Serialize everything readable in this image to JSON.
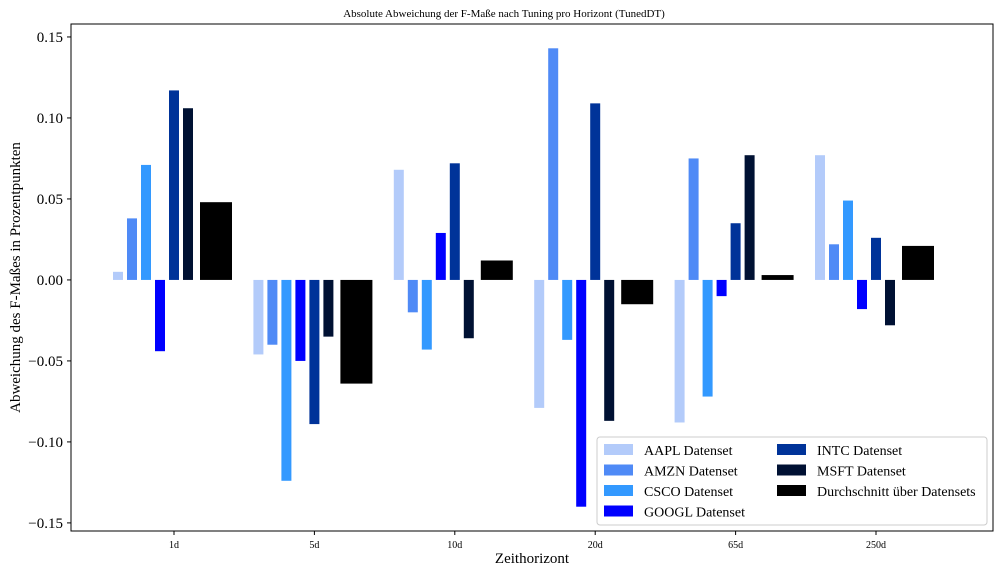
{
  "chart_data": {
    "type": "bar",
    "title": "Absolute Abweichung der F-Maße nach Tuning pro Horizont (TunedDT)",
    "xlabel": "Zeithorizont",
    "ylabel": "Abweichung des F-Maßes in Prozentpunkten",
    "categories": [
      "1d",
      "5d",
      "10d",
      "20d",
      "65d",
      "250d"
    ],
    "ylim": [
      -0.155,
      0.158
    ],
    "yticks": [
      "0.15",
      "0.10",
      "0.05",
      "0.00",
      "−0.05",
      "−0.10",
      "−0.15"
    ],
    "ytick_values": [
      0.15,
      0.1,
      0.05,
      0.0,
      -0.05,
      -0.1,
      -0.15
    ],
    "grid": false,
    "legend_position": "bottom-right",
    "series": [
      {
        "name": "AAPL Datenset",
        "color": "#b3cbfa",
        "values": [
          0.005,
          -0.046,
          0.068,
          -0.079,
          -0.088,
          0.077
        ]
      },
      {
        "name": "AMZN Datenset",
        "color": "#4f8af6",
        "values": [
          0.038,
          -0.04,
          -0.02,
          0.143,
          0.075,
          0.022
        ]
      },
      {
        "name": "CSCO Datenset",
        "color": "#3399ff",
        "values": [
          0.071,
          -0.124,
          -0.043,
          -0.037,
          -0.072,
          0.049
        ]
      },
      {
        "name": "GOOGL Datenset",
        "color": "#0000ff",
        "values": [
          -0.044,
          -0.05,
          0.029,
          -0.14,
          -0.01,
          -0.018
        ]
      },
      {
        "name": "INTC Datenset",
        "color": "#003399",
        "values": [
          0.117,
          -0.089,
          0.072,
          0.109,
          0.035,
          0.026
        ]
      },
      {
        "name": "MSFT Datenset",
        "color": "#001133",
        "values": [
          0.106,
          -0.035,
          -0.036,
          -0.087,
          0.077,
          -0.028
        ]
      },
      {
        "name": "Durchschnitt über Datensets",
        "color": "#000000",
        "values": [
          0.048,
          -0.064,
          0.012,
          -0.015,
          0.003,
          0.021
        ]
      }
    ]
  }
}
